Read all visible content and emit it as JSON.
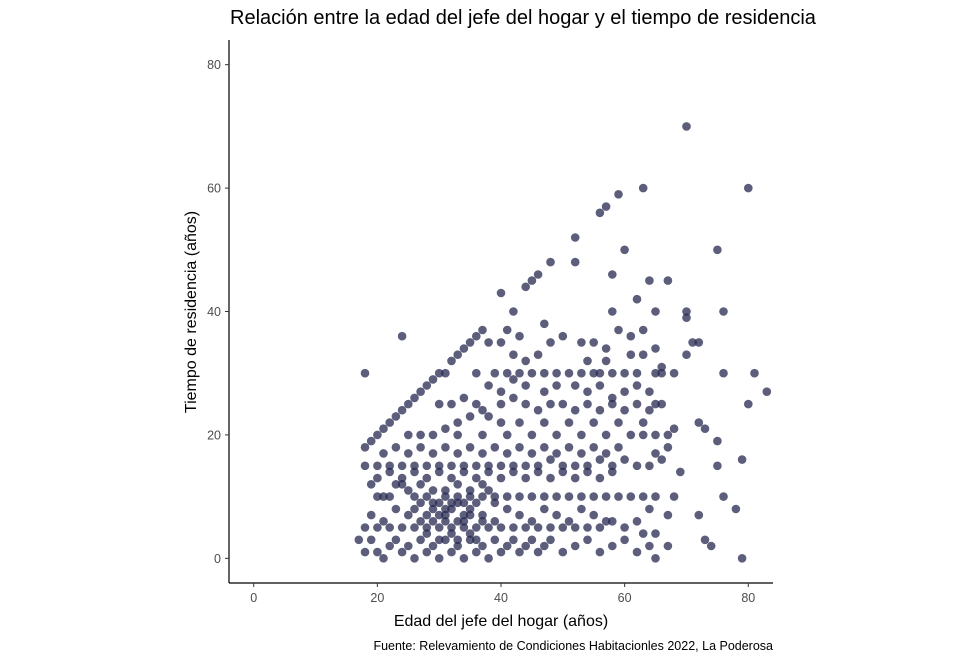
{
  "chart_data": {
    "type": "scatter",
    "title": "Relación entre la edad del jefe del hogar y el tiempo de residencia",
    "xlabel": "Edad del jefe del hogar (años)",
    "ylabel": "Tiempo de residencia (años)",
    "caption": "Fuente: Relevamiento de Condiciones Habitacionles 2022, La Poderosa",
    "xlim": [
      -4,
      84
    ],
    "ylim": [
      -4,
      84
    ],
    "x_ticks": [
      0,
      20,
      40,
      60,
      80
    ],
    "y_ticks": [
      0,
      20,
      40,
      60,
      80
    ],
    "x_tick_labels": [
      "0",
      "20",
      "40",
      "60",
      "80"
    ],
    "y_tick_labels": [
      "0",
      "20",
      "40",
      "60",
      "80"
    ],
    "grid": false,
    "legend": "none",
    "point_color": "#252850",
    "point_opacity": 0.75,
    "points": [
      [
        18,
        30
      ],
      [
        24,
        36
      ],
      [
        40,
        43
      ],
      [
        44,
        44
      ],
      [
        48,
        48
      ],
      [
        52,
        52
      ],
      [
        52,
        48
      ],
      [
        56,
        56
      ],
      [
        57,
        57
      ],
      [
        59,
        59
      ],
      [
        60,
        50
      ],
      [
        63,
        60
      ],
      [
        70,
        70
      ],
      [
        80,
        60
      ],
      [
        75,
        50
      ],
      [
        76,
        40
      ],
      [
        70,
        40
      ],
      [
        64,
        45
      ],
      [
        67,
        45
      ],
      [
        62,
        42
      ],
      [
        58,
        46
      ],
      [
        46,
        46
      ],
      [
        45,
        45
      ],
      [
        42,
        40
      ],
      [
        47,
        38
      ],
      [
        50,
        36
      ],
      [
        53,
        35
      ],
      [
        55,
        35
      ],
      [
        57,
        34
      ],
      [
        59,
        37
      ],
      [
        61,
        36
      ],
      [
        63,
        37
      ],
      [
        65,
        40
      ],
      [
        70,
        39
      ],
      [
        71,
        35
      ],
      [
        72,
        35
      ],
      [
        70,
        33
      ],
      [
        76,
        30
      ],
      [
        81,
        30
      ],
      [
        83,
        27
      ],
      [
        80,
        25
      ],
      [
        72,
        22
      ],
      [
        73,
        21
      ],
      [
        75,
        19
      ],
      [
        79,
        16
      ],
      [
        75,
        15
      ],
      [
        76,
        10
      ],
      [
        78,
        8
      ],
      [
        72,
        7
      ],
      [
        73,
        3
      ],
      [
        74,
        2
      ],
      [
        79,
        0
      ],
      [
        68,
        10
      ],
      [
        69,
        14
      ],
      [
        66,
        16
      ],
      [
        67,
        20
      ],
      [
        68,
        21
      ],
      [
        66,
        25
      ],
      [
        68,
        30
      ],
      [
        66,
        30
      ],
      [
        65,
        30
      ],
      [
        62,
        30
      ],
      [
        60,
        30
      ],
      [
        58,
        30
      ],
      [
        56,
        30
      ],
      [
        55,
        30
      ],
      [
        53,
        30
      ],
      [
        51,
        30
      ],
      [
        49,
        30
      ],
      [
        47,
        30
      ],
      [
        45,
        30
      ],
      [
        43,
        30
      ],
      [
        41,
        30
      ],
      [
        36,
        30
      ],
      [
        34,
        34
      ],
      [
        35,
        35
      ],
      [
        36,
        36
      ],
      [
        37,
        37
      ],
      [
        33,
        33
      ],
      [
        32,
        32
      ],
      [
        31,
        30
      ],
      [
        30,
        30
      ],
      [
        29,
        29
      ],
      [
        28,
        28
      ],
      [
        27,
        27
      ],
      [
        26,
        26
      ],
      [
        25,
        25
      ],
      [
        24,
        24
      ],
      [
        23,
        23
      ],
      [
        22,
        22
      ],
      [
        21,
        21
      ],
      [
        20,
        20
      ],
      [
        19,
        19
      ],
      [
        18,
        18
      ],
      [
        39,
        30
      ],
      [
        38,
        28
      ],
      [
        40,
        27
      ],
      [
        42,
        26
      ],
      [
        44,
        25
      ],
      [
        46,
        24
      ],
      [
        48,
        25
      ],
      [
        50,
        25
      ],
      [
        52,
        24
      ],
      [
        54,
        25
      ],
      [
        56,
        24
      ],
      [
        58,
        25
      ],
      [
        60,
        24
      ],
      [
        62,
        25
      ],
      [
        64,
        24
      ],
      [
        65,
        25
      ],
      [
        30,
        25
      ],
      [
        32,
        25
      ],
      [
        34,
        26
      ],
      [
        36,
        25
      ],
      [
        37,
        24
      ],
      [
        38,
        23
      ],
      [
        40,
        22
      ],
      [
        43,
        22
      ],
      [
        47,
        22
      ],
      [
        51,
        22
      ],
      [
        55,
        22
      ],
      [
        59,
        22
      ],
      [
        63,
        22
      ],
      [
        61,
        20
      ],
      [
        57,
        20
      ],
      [
        53,
        20
      ],
      [
        49,
        20
      ],
      [
        45,
        20
      ],
      [
        41,
        20
      ],
      [
        37,
        20
      ],
      [
        33,
        20
      ],
      [
        29,
        20
      ],
      [
        27,
        20
      ],
      [
        25,
        20
      ],
      [
        63,
        20
      ],
      [
        65,
        20
      ],
      [
        67,
        18
      ],
      [
        65,
        17
      ],
      [
        64,
        15
      ],
      [
        62,
        15
      ],
      [
        60,
        16
      ],
      [
        58,
        15
      ],
      [
        56,
        16
      ],
      [
        54,
        15
      ],
      [
        52,
        15
      ],
      [
        50,
        15
      ],
      [
        48,
        16
      ],
      [
        46,
        15
      ],
      [
        44,
        15
      ],
      [
        42,
        15
      ],
      [
        40,
        15
      ],
      [
        38,
        15
      ],
      [
        36,
        15
      ],
      [
        34,
        15
      ],
      [
        32,
        15
      ],
      [
        30,
        15
      ],
      [
        28,
        15
      ],
      [
        26,
        15
      ],
      [
        24,
        15
      ],
      [
        22,
        15
      ],
      [
        20,
        15
      ],
      [
        18,
        15
      ],
      [
        19,
        12
      ],
      [
        20,
        10
      ],
      [
        21,
        10
      ],
      [
        22,
        10
      ],
      [
        23,
        12
      ],
      [
        24,
        12
      ],
      [
        25,
        11
      ],
      [
        26,
        10
      ],
      [
        27,
        12
      ],
      [
        28,
        10
      ],
      [
        29,
        11
      ],
      [
        31,
        10
      ],
      [
        33,
        10
      ],
      [
        35,
        10
      ],
      [
        37,
        10
      ],
      [
        39,
        10
      ],
      [
        41,
        10
      ],
      [
        43,
        10
      ],
      [
        45,
        10
      ],
      [
        47,
        10
      ],
      [
        49,
        10
      ],
      [
        51,
        10
      ],
      [
        53,
        10
      ],
      [
        55,
        10
      ],
      [
        57,
        10
      ],
      [
        59,
        10
      ],
      [
        61,
        10
      ],
      [
        63,
        10
      ],
      [
        65,
        10
      ],
      [
        67,
        7
      ],
      [
        64,
        8
      ],
      [
        62,
        6
      ],
      [
        60,
        5
      ],
      [
        58,
        6
      ],
      [
        56,
        5
      ],
      [
        54,
        5
      ],
      [
        52,
        5
      ],
      [
        50,
        5
      ],
      [
        48,
        5
      ],
      [
        46,
        5
      ],
      [
        44,
        5
      ],
      [
        42,
        5
      ],
      [
        40,
        5
      ],
      [
        38,
        5
      ],
      [
        36,
        5
      ],
      [
        34,
        5
      ],
      [
        32,
        5
      ],
      [
        30,
        5
      ],
      [
        28,
        5
      ],
      [
        26,
        5
      ],
      [
        24,
        5
      ],
      [
        22,
        5
      ],
      [
        20,
        5
      ],
      [
        18,
        5
      ],
      [
        17,
        3
      ],
      [
        18,
        1
      ],
      [
        19,
        3
      ],
      [
        20,
        1
      ],
      [
        21,
        0
      ],
      [
        22,
        2
      ],
      [
        23,
        3
      ],
      [
        24,
        1
      ],
      [
        25,
        2
      ],
      [
        26,
        0
      ],
      [
        27,
        3
      ],
      [
        28,
        1
      ],
      [
        29,
        2
      ],
      [
        30,
        0
      ],
      [
        31,
        3
      ],
      [
        32,
        1
      ],
      [
        33,
        2
      ],
      [
        34,
        0
      ],
      [
        35,
        3
      ],
      [
        36,
        1
      ],
      [
        37,
        2
      ],
      [
        38,
        0
      ],
      [
        39,
        3
      ],
      [
        40,
        1
      ],
      [
        41,
        2
      ],
      [
        42,
        3
      ],
      [
        43,
        1
      ],
      [
        44,
        2
      ],
      [
        45,
        3
      ],
      [
        46,
        1
      ],
      [
        47,
        2
      ],
      [
        48,
        3
      ],
      [
        50,
        1
      ],
      [
        52,
        2
      ],
      [
        54,
        3
      ],
      [
        56,
        1
      ],
      [
        58,
        2
      ],
      [
        60,
        3
      ],
      [
        62,
        1
      ],
      [
        64,
        2
      ],
      [
        65,
        0
      ],
      [
        67,
        2
      ],
      [
        65,
        4
      ],
      [
        63,
        4
      ],
      [
        19,
        7
      ],
      [
        21,
        6
      ],
      [
        23,
        8
      ],
      [
        25,
        7
      ],
      [
        27,
        6
      ],
      [
        29,
        8
      ],
      [
        31,
        7
      ],
      [
        33,
        6
      ],
      [
        35,
        8
      ],
      [
        37,
        7
      ],
      [
        39,
        6
      ],
      [
        41,
        8
      ],
      [
        43,
        7
      ],
      [
        45,
        6
      ],
      [
        47,
        8
      ],
      [
        49,
        7
      ],
      [
        51,
        6
      ],
      [
        53,
        8
      ],
      [
        55,
        7
      ],
      [
        57,
        6
      ],
      [
        20,
        13
      ],
      [
        22,
        14
      ],
      [
        24,
        13
      ],
      [
        26,
        14
      ],
      [
        28,
        13
      ],
      [
        30,
        14
      ],
      [
        32,
        13
      ],
      [
        34,
        14
      ],
      [
        36,
        13
      ],
      [
        38,
        14
      ],
      [
        40,
        13
      ],
      [
        42,
        14
      ],
      [
        44,
        13
      ],
      [
        46,
        14
      ],
      [
        48,
        13
      ],
      [
        50,
        14
      ],
      [
        52,
        13
      ],
      [
        54,
        14
      ],
      [
        56,
        13
      ],
      [
        58,
        14
      ],
      [
        21,
        17
      ],
      [
        23,
        18
      ],
      [
        25,
        17
      ],
      [
        27,
        18
      ],
      [
        29,
        17
      ],
      [
        31,
        18
      ],
      [
        33,
        17
      ],
      [
        35,
        18
      ],
      [
        37,
        17
      ],
      [
        39,
        18
      ],
      [
        41,
        17
      ],
      [
        43,
        18
      ],
      [
        45,
        17
      ],
      [
        47,
        18
      ],
      [
        49,
        17
      ],
      [
        51,
        18
      ],
      [
        53,
        17
      ],
      [
        55,
        18
      ],
      [
        57,
        17
      ],
      [
        59,
        18
      ],
      [
        30,
        9
      ],
      [
        31,
        11
      ],
      [
        32,
        9
      ],
      [
        33,
        12
      ],
      [
        34,
        9
      ],
      [
        35,
        11
      ],
      [
        36,
        9
      ],
      [
        37,
        12
      ],
      [
        38,
        11
      ],
      [
        39,
        9
      ],
      [
        28,
        4
      ],
      [
        29,
        6
      ],
      [
        30,
        3
      ],
      [
        31,
        6
      ],
      [
        32,
        4
      ],
      [
        33,
        3
      ],
      [
        34,
        6
      ],
      [
        35,
        4
      ],
      [
        36,
        3
      ],
      [
        37,
        6
      ],
      [
        26,
        8
      ],
      [
        27,
        9
      ],
      [
        28,
        7
      ],
      [
        29,
        9
      ],
      [
        30,
        7
      ],
      [
        31,
        8
      ],
      [
        32,
        8
      ],
      [
        33,
        9
      ],
      [
        34,
        7
      ],
      [
        35,
        7
      ],
      [
        40,
        35
      ],
      [
        42,
        33
      ],
      [
        44,
        32
      ],
      [
        46,
        33
      ],
      [
        48,
        35
      ],
      [
        38,
        35
      ],
      [
        41,
        37
      ],
      [
        43,
        36
      ],
      [
        49,
        28
      ],
      [
        47,
        27
      ],
      [
        44,
        28
      ],
      [
        42,
        29
      ],
      [
        40,
        25
      ],
      [
        35,
        23
      ],
      [
        33,
        22
      ],
      [
        31,
        21
      ],
      [
        52,
        28
      ],
      [
        54,
        27
      ],
      [
        56,
        28
      ],
      [
        58,
        26
      ],
      [
        60,
        27
      ],
      [
        62,
        28
      ],
      [
        64,
        27
      ],
      [
        61,
        33
      ],
      [
        63,
        33
      ],
      [
        65,
        34
      ],
      [
        66,
        31
      ],
      [
        57,
        32
      ],
      [
        54,
        32
      ],
      [
        58,
        40
      ]
    ]
  }
}
